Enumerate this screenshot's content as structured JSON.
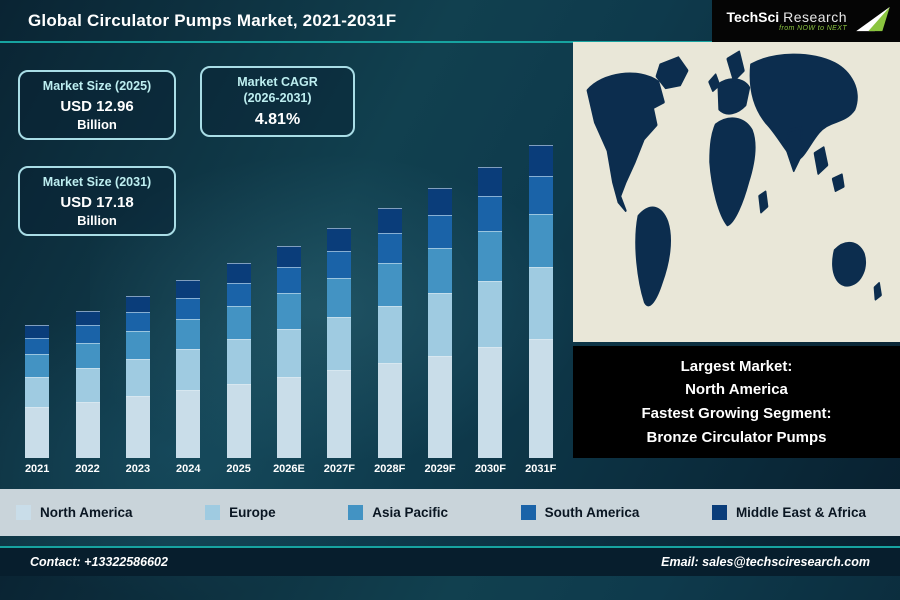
{
  "header": {
    "title": "Global Circulator Pumps Market, 2021-2031F"
  },
  "logo": {
    "part1": "TechSci",
    "part2": "Research",
    "tagline": "from NOW to NEXT"
  },
  "info_boxes": {
    "size_2025": {
      "label": "Market Size (2025)",
      "value": "USD 12.96",
      "unit": "Billion"
    },
    "cagr": {
      "label_line1": "Market CAGR",
      "label_line2": "(2026-2031)",
      "value": "4.81%"
    },
    "size_2031": {
      "label": "Market Size (2031)",
      "value": "USD 17.18",
      "unit": "Billion"
    }
  },
  "chart_data": {
    "type": "bar",
    "stacked": true,
    "title": "Global Circulator Pumps Market, 2021-2031F",
    "unit": "USD Billion",
    "categories": [
      "2021",
      "2022",
      "2023",
      "2024",
      "2025",
      "2026E",
      "2027F",
      "2028F",
      "2029F",
      "2030F",
      "2031F"
    ],
    "totals": [
      10.75,
      11.26,
      11.8,
      12.37,
      12.96,
      13.58,
      14.23,
      14.92,
      15.64,
      16.39,
      17.18
    ],
    "series": [
      {
        "name": "North America",
        "color": "#c9dde9",
        "values": [
          4.09,
          4.28,
          4.48,
          4.7,
          4.92,
          5.16,
          5.41,
          5.67,
          5.94,
          6.23,
          6.53
        ]
      },
      {
        "name": "Europe",
        "color": "#9fcbe1",
        "values": [
          2.47,
          2.59,
          2.71,
          2.85,
          2.98,
          3.12,
          3.27,
          3.43,
          3.6,
          3.77,
          3.95
        ]
      },
      {
        "name": "Asia Pacific",
        "color": "#4393c3",
        "values": [
          1.83,
          1.91,
          2.01,
          2.1,
          2.2,
          2.31,
          2.42,
          2.54,
          2.66,
          2.79,
          2.92
        ]
      },
      {
        "name": "South America",
        "color": "#1a63a8",
        "values": [
          1.29,
          1.35,
          1.42,
          1.48,
          1.56,
          1.63,
          1.71,
          1.79,
          1.88,
          1.97,
          2.06
        ]
      },
      {
        "name": "Middle East & Africa",
        "color": "#0a3d7a",
        "values": [
          1.07,
          1.13,
          1.18,
          1.24,
          1.3,
          1.36,
          1.42,
          1.49,
          1.56,
          1.64,
          1.72
        ]
      }
    ],
    "annotations": {
      "market_size_2025": "USD 12.96 Billion",
      "market_size_2031": "USD 17.18 Billion",
      "cagr_2026_2031": "4.81%"
    },
    "legend_position": "bottom",
    "gridlines": false
  },
  "note_box": {
    "l1": "Largest Market:",
    "l2": "North America",
    "l3": "Fastest Growing Segment:",
    "l4": "Bronze Circulator Pumps"
  },
  "footer": {
    "contact": "Contact: +13322586602",
    "email": "Email: sales@techsciresearch.com"
  },
  "colors": {
    "accent_teal": "#17a3a0",
    "map_land": "#0c2d4e",
    "map_sea": "#e9e7d8",
    "logo_green": "#8bc53f"
  }
}
